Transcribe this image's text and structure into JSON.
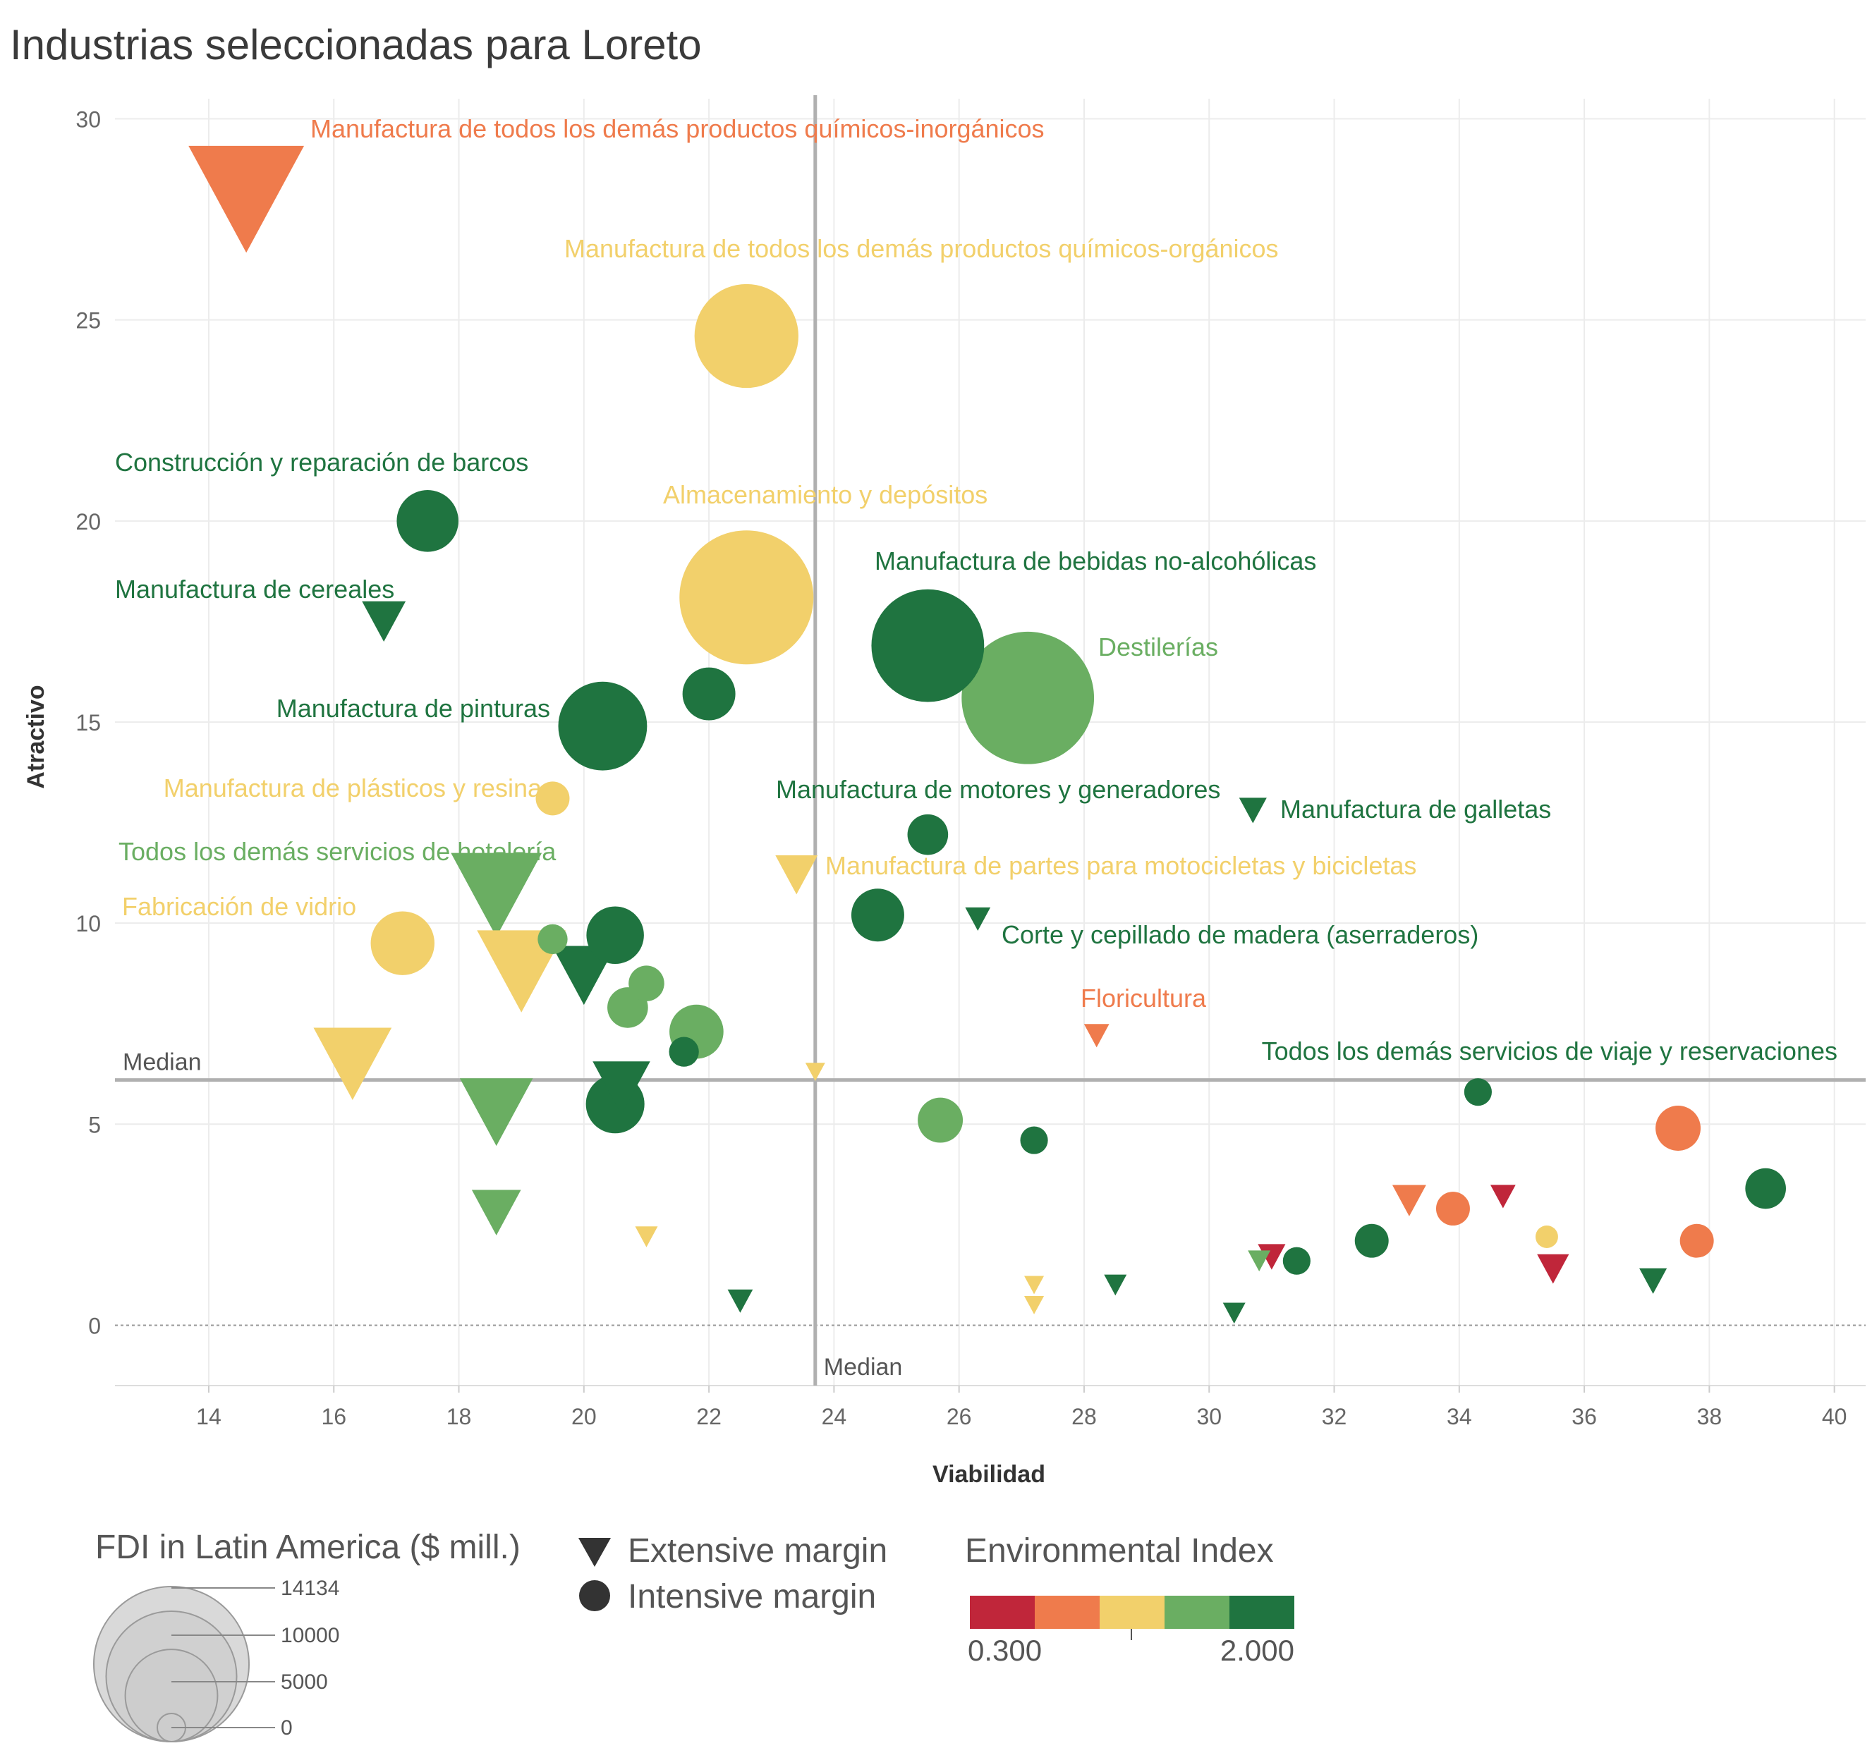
{
  "chart_data": {
    "type": "scatter",
    "title": "Industrias seleccionadas para Loreto",
    "xlabel": "Viabilidad",
    "ylabel": "Atractivo",
    "xlim": [
      12.5,
      40.5
    ],
    "ylim": [
      -1.5,
      30.5
    ],
    "x_ticks": [
      14,
      16,
      18,
      20,
      22,
      24,
      26,
      28,
      30,
      32,
      34,
      36,
      38,
      40
    ],
    "y_ticks": [
      0,
      5,
      10,
      15,
      20,
      25,
      30
    ],
    "grid": true,
    "median_x": 23.7,
    "median_y": 6.1,
    "median_label": "Median",
    "environment_colors": {
      "level1": "#c0263a",
      "level2": "#ef7b4c",
      "level3": "#f2d06b",
      "level4": "#6aae62",
      "level5": "#1f7440"
    },
    "series": [
      {
        "x": 14.6,
        "y": 28.0,
        "shape": "triangle",
        "fdi": 10500,
        "env": "level2",
        "label": "Manufactura de todos los demás productos químicos-inorgánicos"
      },
      {
        "x": 22.6,
        "y": 24.6,
        "shape": "circle",
        "fdi": 8500,
        "env": "level3",
        "label": "Manufactura de todos los demás productos químicos-orgánicos"
      },
      {
        "x": 17.5,
        "y": 20.0,
        "shape": "circle",
        "fdi": 3000,
        "env": "level5",
        "label": "Construcción y reparación de barcos"
      },
      {
        "x": 22.6,
        "y": 18.1,
        "shape": "circle",
        "fdi": 14134,
        "env": "level3",
        "label": "Almacenamiento y depósitos"
      },
      {
        "x": 16.8,
        "y": 17.5,
        "shape": "triangle",
        "fdi": 1500,
        "env": "level5",
        "label": "Manufactura de cereales"
      },
      {
        "x": 25.5,
        "y": 16.9,
        "shape": "circle",
        "fdi": 10000,
        "env": "level5",
        "label": "Manufactura de bebidas no-alcohólicas"
      },
      {
        "x": 27.1,
        "y": 15.6,
        "shape": "circle",
        "fdi": 13800,
        "env": "level4",
        "label": "Destilerías"
      },
      {
        "x": 22.0,
        "y": 15.7,
        "shape": "circle",
        "fdi": 2200,
        "env": "level5",
        "label": ""
      },
      {
        "x": 20.3,
        "y": 14.9,
        "shape": "circle",
        "fdi": 6200,
        "env": "level5",
        "label": "Manufactura de pinturas"
      },
      {
        "x": 19.5,
        "y": 13.1,
        "shape": "circle",
        "fdi": 900,
        "env": "level3",
        "label": "Manufactura de plásticos y resina"
      },
      {
        "x": 25.5,
        "y": 12.2,
        "shape": "circle",
        "fdi": 1300,
        "env": "level5",
        "label": "Manufactura de motores y generadores"
      },
      {
        "x": 30.7,
        "y": 12.8,
        "shape": "triangle",
        "fdi": 600,
        "env": "level5",
        "label": "Manufactura de galletas"
      },
      {
        "x": 23.4,
        "y": 11.2,
        "shape": "triangle",
        "fdi": 1400,
        "env": "level3",
        "label": "Manufactura de partes para motocicletas y bicicletas"
      },
      {
        "x": 24.7,
        "y": 10.2,
        "shape": "circle",
        "fdi": 2200,
        "env": "level5",
        "label": ""
      },
      {
        "x": 26.3,
        "y": 10.1,
        "shape": "triangle",
        "fdi": 500,
        "env": "level5",
        "label": "Corte y cepillado de madera (aserraderos)"
      },
      {
        "x": 18.6,
        "y": 10.7,
        "shape": "triangle",
        "fdi": 6500,
        "env": "level4",
        "label": "Todos los demás servicios de hotelería"
      },
      {
        "x": 17.1,
        "y": 9.5,
        "shape": "circle",
        "fdi": 3200,
        "env": "level3",
        "label": "Fabricación de vidrio"
      },
      {
        "x": 19.5,
        "y": 9.6,
        "shape": "circle",
        "fdi": 700,
        "env": "level4",
        "label": ""
      },
      {
        "x": 20.5,
        "y": 9.7,
        "shape": "circle",
        "fdi": 2600,
        "env": "level5",
        "label": ""
      },
      {
        "x": 20.0,
        "y": 8.7,
        "shape": "triangle",
        "fdi": 3200,
        "env": "level5",
        "label": ""
      },
      {
        "x": 19.0,
        "y": 8.8,
        "shape": "triangle",
        "fdi": 6200,
        "env": "level3",
        "label": ""
      },
      {
        "x": 21.0,
        "y": 8.5,
        "shape": "circle",
        "fdi": 1000,
        "env": "level4",
        "label": ""
      },
      {
        "x": 20.7,
        "y": 7.9,
        "shape": "circle",
        "fdi": 1300,
        "env": "level4",
        "label": ""
      },
      {
        "x": 21.8,
        "y": 7.3,
        "shape": "circle",
        "fdi": 2300,
        "env": "level4",
        "label": ""
      },
      {
        "x": 21.6,
        "y": 6.8,
        "shape": "circle",
        "fdi": 700,
        "env": "level5",
        "label": ""
      },
      {
        "x": 28.2,
        "y": 7.2,
        "shape": "triangle",
        "fdi": 500,
        "env": "level2",
        "label": "Floricultura"
      },
      {
        "x": 16.3,
        "y": 6.5,
        "shape": "triangle",
        "fdi": 4800,
        "env": "level3",
        "label": ""
      },
      {
        "x": 23.7,
        "y": 6.3,
        "shape": "triangle",
        "fdi": 300,
        "env": "level3",
        "label": ""
      },
      {
        "x": 20.6,
        "y": 5.9,
        "shape": "triangle",
        "fdi": 2600,
        "env": "level5",
        "label": ""
      },
      {
        "x": 20.5,
        "y": 5.5,
        "shape": "circle",
        "fdi": 2700,
        "env": "level5",
        "label": ""
      },
      {
        "x": 18.6,
        "y": 5.3,
        "shape": "triangle",
        "fdi": 4200,
        "env": "level4",
        "label": ""
      },
      {
        "x": 25.7,
        "y": 5.1,
        "shape": "circle",
        "fdi": 1600,
        "env": "level4",
        "label": ""
      },
      {
        "x": 27.2,
        "y": 4.6,
        "shape": "circle",
        "fdi": 600,
        "env": "level5",
        "label": ""
      },
      {
        "x": 34.3,
        "y": 5.8,
        "shape": "circle",
        "fdi": 600,
        "env": "level5",
        "label": "Todos los demás servicios de viaje y reservaciones"
      },
      {
        "x": 37.5,
        "y": 4.9,
        "shape": "circle",
        "fdi": 1600,
        "env": "level2",
        "label": ""
      },
      {
        "x": 38.9,
        "y": 3.4,
        "shape": "circle",
        "fdi": 1300,
        "env": "level5",
        "label": ""
      },
      {
        "x": 33.2,
        "y": 3.1,
        "shape": "triangle",
        "fdi": 900,
        "env": "level2",
        "label": ""
      },
      {
        "x": 33.9,
        "y": 2.9,
        "shape": "circle",
        "fdi": 900,
        "env": "level2",
        "label": ""
      },
      {
        "x": 34.7,
        "y": 3.2,
        "shape": "triangle",
        "fdi": 500,
        "env": "level1",
        "label": ""
      },
      {
        "x": 32.6,
        "y": 2.1,
        "shape": "circle",
        "fdi": 900,
        "env": "level5",
        "label": ""
      },
      {
        "x": 35.4,
        "y": 2.2,
        "shape": "circle",
        "fdi": 400,
        "env": "level3",
        "label": ""
      },
      {
        "x": 37.8,
        "y": 2.1,
        "shape": "circle",
        "fdi": 900,
        "env": "level2",
        "label": ""
      },
      {
        "x": 18.6,
        "y": 2.8,
        "shape": "triangle",
        "fdi": 1900,
        "env": "level4",
        "label": ""
      },
      {
        "x": 21.0,
        "y": 2.2,
        "shape": "triangle",
        "fdi": 400,
        "env": "level3",
        "label": ""
      },
      {
        "x": 31.0,
        "y": 1.7,
        "shape": "triangle",
        "fdi": 600,
        "env": "level1",
        "label": ""
      },
      {
        "x": 30.8,
        "y": 1.6,
        "shape": "triangle",
        "fdi": 400,
        "env": "level4",
        "label": ""
      },
      {
        "x": 31.4,
        "y": 1.6,
        "shape": "circle",
        "fdi": 600,
        "env": "level5",
        "label": ""
      },
      {
        "x": 35.5,
        "y": 1.4,
        "shape": "triangle",
        "fdi": 800,
        "env": "level1",
        "label": ""
      },
      {
        "x": 37.1,
        "y": 1.1,
        "shape": "triangle",
        "fdi": 600,
        "env": "level5",
        "label": ""
      },
      {
        "x": 28.5,
        "y": 1.0,
        "shape": "triangle",
        "fdi": 400,
        "env": "level5",
        "label": ""
      },
      {
        "x": 27.2,
        "y": 1.0,
        "shape": "triangle",
        "fdi": 300,
        "env": "level3",
        "label": ""
      },
      {
        "x": 27.2,
        "y": 0.5,
        "shape": "triangle",
        "fdi": 300,
        "env": "level3",
        "label": ""
      },
      {
        "x": 22.5,
        "y": 0.6,
        "shape": "triangle",
        "fdi": 500,
        "env": "level5",
        "label": ""
      },
      {
        "x": 30.4,
        "y": 0.3,
        "shape": "triangle",
        "fdi": 400,
        "env": "level5",
        "label": ""
      }
    ]
  },
  "legend": {
    "size_title": "FDI in Latin America ($ mill.)",
    "size_values": [
      14134,
      10000,
      5000,
      0
    ],
    "size_value_labels": [
      "14134",
      "10000",
      "5000",
      "0"
    ],
    "shape_extensive": "Extensive margin",
    "shape_intensive": "Intensive margin",
    "env_title": "Environmental Index",
    "env_min": "0.300",
    "env_max": "2.000"
  }
}
